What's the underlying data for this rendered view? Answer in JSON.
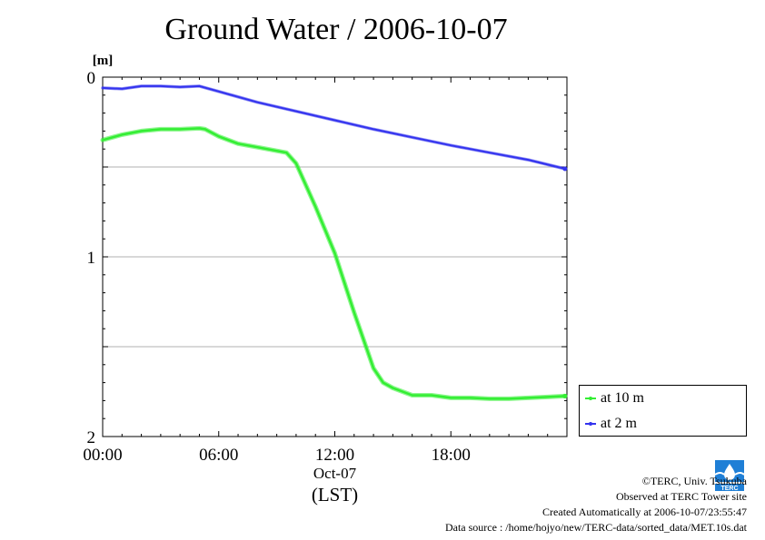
{
  "title": "Ground Water / 2006-10-07",
  "credits": {
    "copyright": "©TERC, Univ. Tsukuba",
    "observed": "Observed at TERC Tower site",
    "created": "Created Automatically at 2006-10-07/23:55:47",
    "source": "Data source : /home/hojyo/new/TERC-data/sorted_data/MET.10s.dat"
  },
  "logo": {
    "text": "TERC",
    "color": "#1f7fd6",
    "icon": "terc-logo-icon"
  },
  "chart_data": {
    "type": "line",
    "title": "Ground Water / 2006-10-07",
    "ylabel": "[m]",
    "xlabel": "(LST)",
    "x_date_label": "Oct-07",
    "xlim": [
      0,
      24
    ],
    "ylim": [
      2,
      0
    ],
    "y_inverted": true,
    "yticks": [
      "0",
      "1",
      "2"
    ],
    "xticks": [
      "00:00",
      "06:00",
      "12:00",
      "18:00"
    ],
    "grid": "horizontal",
    "legend_position": "bottom-right outside",
    "series": [
      {
        "name": "at 10 m",
        "color": "#33ee33",
        "x": [
          0,
          1,
          2,
          3,
          4,
          5,
          5.3,
          6,
          7,
          8,
          9,
          9.5,
          10,
          11,
          12,
          13,
          14,
          14.5,
          15,
          16,
          17,
          18,
          19,
          20,
          21,
          22,
          23,
          23.9
        ],
        "y": [
          0.35,
          0.32,
          0.3,
          0.29,
          0.29,
          0.285,
          0.29,
          0.33,
          0.37,
          0.39,
          0.41,
          0.42,
          0.48,
          0.72,
          0.98,
          1.31,
          1.62,
          1.7,
          1.73,
          1.77,
          1.77,
          1.785,
          1.785,
          1.79,
          1.79,
          1.785,
          1.78,
          1.775
        ]
      },
      {
        "name": "at 2 m",
        "color": "#3333ee",
        "x": [
          0,
          1,
          2,
          3,
          4,
          5,
          6,
          8,
          10,
          12,
          14,
          16,
          18,
          20,
          22,
          23.9
        ],
        "y": [
          0.06,
          0.065,
          0.05,
          0.05,
          0.055,
          0.05,
          0.08,
          0.14,
          0.19,
          0.24,
          0.29,
          0.335,
          0.38,
          0.42,
          0.46,
          0.51
        ]
      }
    ]
  }
}
